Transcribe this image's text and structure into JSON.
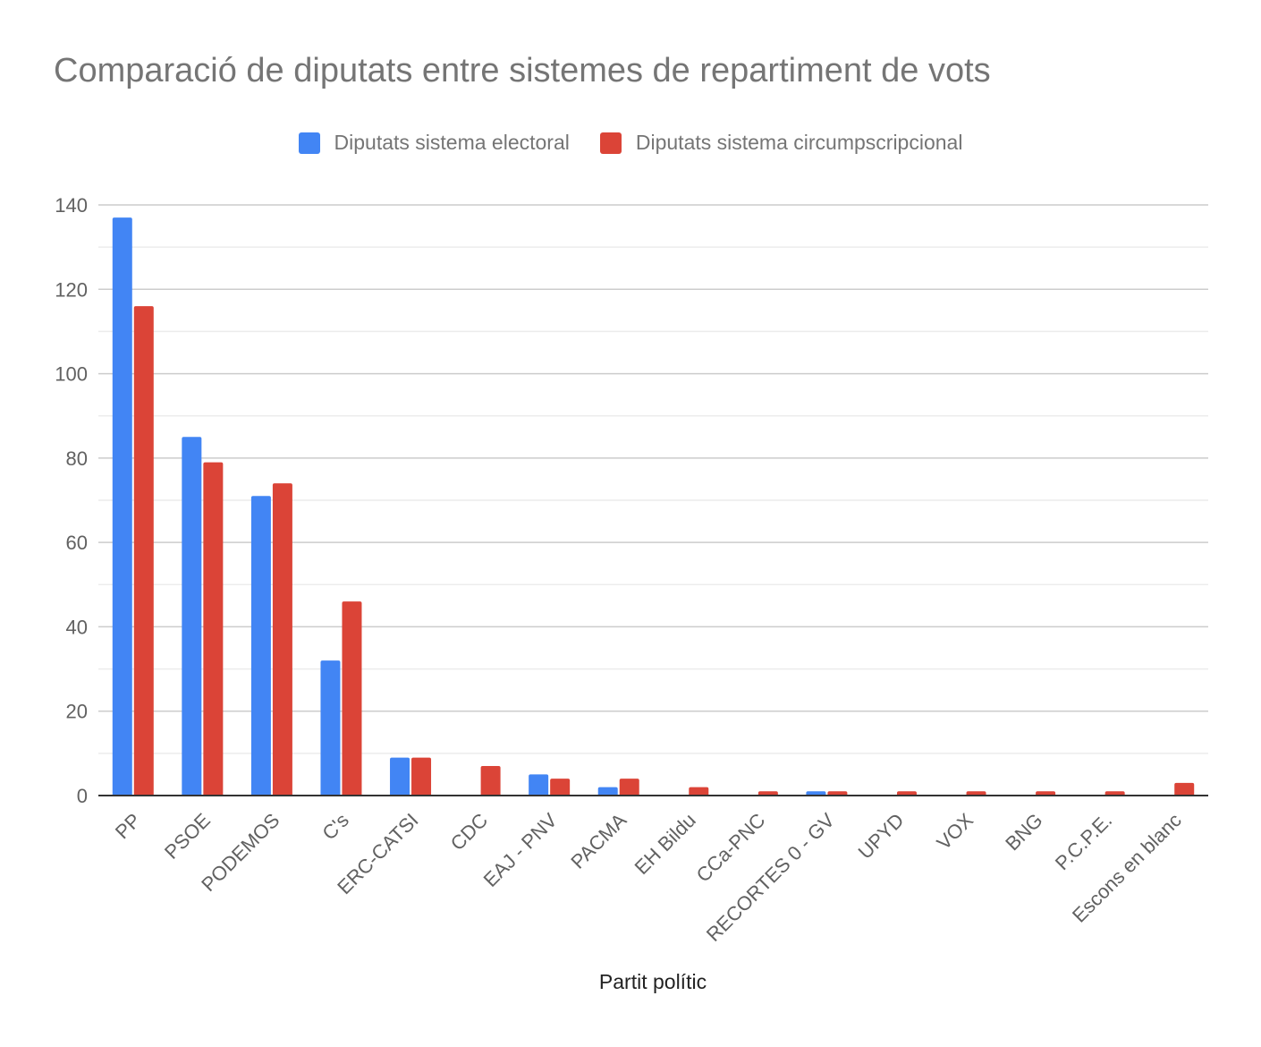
{
  "chart_data": {
    "type": "bar",
    "title": "Comparació de diputats entre sistemes de repartiment de vots",
    "xlabel": "Partit polític",
    "ylabel": "",
    "ylim": [
      0,
      140
    ],
    "yticks": [
      0,
      20,
      40,
      60,
      80,
      100,
      120,
      140
    ],
    "grid": true,
    "legend_position": "top",
    "categories": [
      "PP",
      "PSOE",
      "PODEMOS",
      "C's",
      "ERC-CATSI",
      "CDC",
      "EAJ - PNV",
      "PACMA",
      "EH Bildu",
      "CCa-PNC",
      "RECORTES 0 - GV",
      "UPYD",
      "VOX",
      "BNG",
      "P.C.P.E.",
      "Escons en blanc"
    ],
    "series": [
      {
        "name": "Diputats sistema electoral",
        "color": "#4285f4",
        "values": [
          137,
          85,
          71,
          32,
          9,
          0,
          5,
          2,
          0,
          0,
          1,
          0,
          0,
          0,
          0,
          0
        ]
      },
      {
        "name": "Diputats sistema circumpscripcional",
        "color": "#db4437",
        "values": [
          116,
          79,
          74,
          46,
          9,
          7,
          4,
          4,
          2,
          1,
          1,
          1,
          1,
          1,
          1,
          3
        ]
      }
    ]
  }
}
